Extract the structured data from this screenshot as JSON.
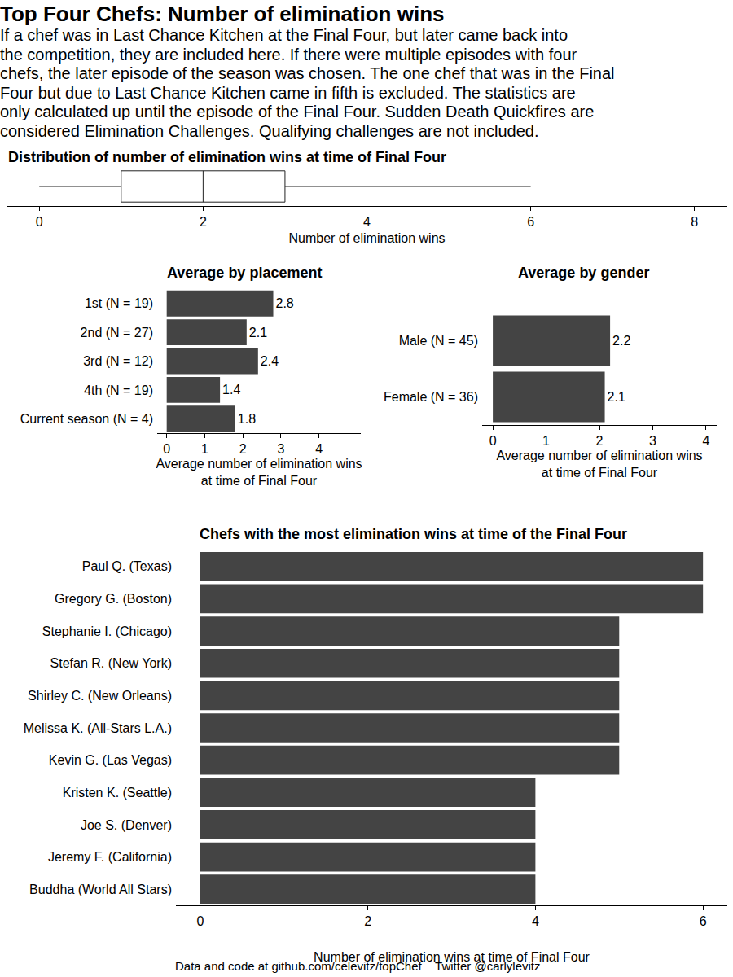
{
  "title": "Top Four Chefs: Number of elimination wins",
  "subtitle": [
    "If a chef was in Last Chance Kitchen at the Final Four, but later came back into",
    "the competition, they are included here. If there were multiple episodes with four",
    "chefs, the later episode of the season was chosen. The one chef that was in the Final",
    "Four but due to Last Chance Kitchen came in fifth is excluded. The statistics are",
    "only calculated up until the episode of the Final Four. Sudden Death Quickfires are",
    "considered Elimination Challenges. Qualifying challenges are not included."
  ],
  "footer": "Data and code at github.com/celevitz/topChef    Twitter @carlylevitz",
  "chart_data": [
    {
      "type": "box",
      "title": "Distribution of number of elimination wins at time of Final Four",
      "xlabel": [
        "Number of elimination wins"
      ],
      "stats": {
        "min": 0,
        "q1": 1,
        "median": 2,
        "q3": 3,
        "max": 6
      },
      "orientation": "horizontal",
      "xlim": [
        -0.4,
        8.4
      ],
      "xticks": [
        0,
        2,
        4,
        6,
        8
      ],
      "tick_labels": "x",
      "grid": false
    },
    {
      "type": "bar",
      "title": "Average by placement",
      "xlabel": [
        "Average number of elimination wins",
        "at time of Final Four"
      ],
      "categories": [
        "1st (N = 19)",
        "2nd (N = 27)",
        "3rd (N = 12)",
        "4th (N = 19)",
        "Current season (N = 4)"
      ],
      "values": [
        2.8,
        2.1,
        2.4,
        1.4,
        1.8
      ],
      "color": "#444444",
      "orientation": "horizontal",
      "data_labels": true,
      "xlim": [
        -0.25,
        5.1
      ],
      "xticks": [
        0,
        1,
        2,
        3,
        4
      ],
      "grid": false
    },
    {
      "type": "bar",
      "title": "Average by gender",
      "xlabel": [
        "Average number of elimination wins",
        "at time of Final Four"
      ],
      "categories": [
        "Male (N = 45)",
        "Female (N = 36)"
      ],
      "values": [
        2.2,
        2.1
      ],
      "color": "#444444",
      "orientation": "horizontal",
      "data_labels": true,
      "xlim": [
        -0.2,
        4.2
      ],
      "xticks": [
        0,
        1,
        2,
        3,
        4
      ],
      "grid": false
    },
    {
      "type": "bar",
      "title": "Chefs with the most elimination wins at time of the Final Four",
      "xlabel": [
        "Number of elimination wins at time of Final Four"
      ],
      "categories": [
        "Paul Q. (Texas)",
        "Gregory G. (Boston)",
        "Stephanie I. (Chicago)",
        "Stefan R. (New York)",
        "Shirley C. (New Orleans)",
        "Melissa K. (All-Stars L.A.)",
        "Kevin G. (Las Vegas)",
        "Kristen K. (Seattle)",
        "Joe S. (Denver)",
        "Jeremy F. (California)",
        "Buddha (World All Stars)"
      ],
      "values": [
        6,
        6,
        5,
        5,
        5,
        5,
        5,
        4,
        4,
        4,
        4
      ],
      "color": "#444444",
      "orientation": "horizontal",
      "data_labels": false,
      "xlim": [
        -0.29,
        6.29
      ],
      "xticks": [
        0,
        2,
        4,
        6
      ],
      "grid": false
    }
  ]
}
